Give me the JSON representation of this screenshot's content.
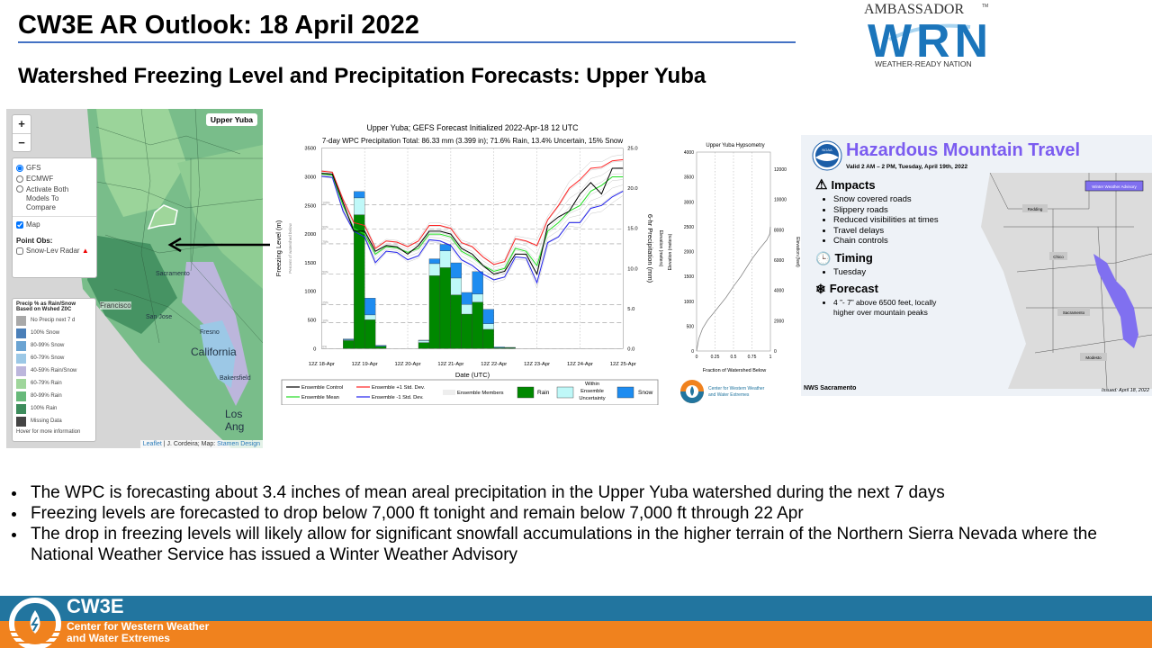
{
  "slide": {
    "title": "CW3E AR Outlook: 18 April 2022",
    "subtitle": "Watershed Freezing Level and Precipitation Forecasts: Upper Yuba",
    "bullets": [
      "The WPC is forecasting about 3.4 inches of mean areal precipitation in the Upper Yuba watershed during  the next 7 days",
      "Freezing levels are forecasted to drop below 7,000 ft tonight and remain below 7,000 ft through  22 Apr",
      "The drop in freezing levels will likely allow for significant snowfall accumulations in the higher terrain of the Northern Sierra Nevada where the National Weather Service has issued a Winter Weather Advisory"
    ]
  },
  "wrn_logo": {
    "top": "AMBASSADOR",
    "tm": "TM",
    "mark": "WRN",
    "bottom": "WEATHER-READY NATION"
  },
  "map": {
    "zoom_in": "+",
    "zoom_out": "−",
    "badge": "Upper Yuba",
    "models": [
      {
        "label": "GFS",
        "checked": true
      },
      {
        "label": "ECMWF",
        "checked": false
      },
      {
        "label": "Activate Both Models To Compare",
        "checked": false
      }
    ],
    "map_checkbox": "Map",
    "point_obs_label": "Point Obs:",
    "snow_radar": "Snow-Lev Radar",
    "legend_title": "Precip % as Rain/Snow Based on Wshed Z0C",
    "legend": [
      {
        "label": "No Precip next 7 d",
        "color": "#a9a9a9"
      },
      {
        "label": "100% Snow",
        "color": "#4a7fb8"
      },
      {
        "label": "80-99% Snow",
        "color": "#6aa3d2"
      },
      {
        "label": "60-79% Snow",
        "color": "#9cc8e6"
      },
      {
        "label": "40-59% Rain/Snow",
        "color": "#bcb6dc"
      },
      {
        "label": "60-79% Rain",
        "color": "#9fd69b"
      },
      {
        "label": "80-99% Rain",
        "color": "#67b97a"
      },
      {
        "label": "100% Rain",
        "color": "#3d8c5c"
      },
      {
        "label": "Missing Data",
        "color": "#444444"
      }
    ],
    "legend_footer": "Hover for more information",
    "places": [
      "Francisco",
      "San Jose",
      "California",
      "Sacramento",
      "Fresno",
      "Los Ang",
      "Bakersfield"
    ],
    "attribution_leaflet": "Leaflet",
    "attribution_rest": " | J. Cordeira; Map: ",
    "attribution_stamen": "Stamen Design"
  },
  "chart_data": [
    {
      "type": "bar+line",
      "title": "Upper Yuba; GEFS Forecast Initialized 2022-Apr-18 12 UTC",
      "subtitle": "7-day WPC Precipitation Total: 86.33 mm (3.399 in);  71.6% Rain, 13.4% Uncertain, 15% Snow",
      "xlabel": "Date (UTC)",
      "ylabel": "Freezing Level (m)",
      "ylabel_inner": "Percent of watershed below",
      "y2label": "6-hr Precipitation (mm)",
      "y3label": "Elevation (meters)",
      "xticks": [
        "12Z 18-Apr",
        "12Z 19-Apr",
        "12Z 20-Apr",
        "12Z 21-Apr",
        "12Z 22-Apr",
        "12Z 23-Apr",
        "12Z 24-Apr",
        "12Z 25-Apr"
      ],
      "ylim": [
        0,
        3500
      ],
      "yticks": [
        0,
        500,
        1000,
        1500,
        2000,
        2500,
        3000,
        3500
      ],
      "y2lim": [
        0,
        25
      ],
      "y2ticks": [
        "0.0",
        "5.0",
        "10.0",
        "15.0",
        "20.0",
        "25.0"
      ],
      "percent_lines": [
        {
          "label": "0%",
          "value": 0
        },
        {
          "label": "10%",
          "value": 450
        },
        {
          "label": "25%",
          "value": 770
        },
        {
          "label": "50%",
          "value": 1300
        },
        {
          "label": "75%",
          "value": 1830
        },
        {
          "label": "90%",
          "value": 2090
        },
        {
          "label": "100%",
          "value": 2510
        }
      ],
      "bins_6hr": 28,
      "rain": [
        0,
        0,
        1.0,
        16.7,
        3.6,
        0.3,
        0,
        0,
        0,
        0.75,
        9.1,
        10.1,
        6.7,
        4.3,
        5.8,
        2.4,
        0.1,
        0.1,
        0,
        0,
        0,
        0,
        0,
        0,
        0,
        0,
        0,
        0
      ],
      "uncertain": [
        0,
        0,
        0.1,
        2.1,
        0.6,
        0,
        0,
        0,
        0,
        0.25,
        1.5,
        2.1,
        2.1,
        1.2,
        1.0,
        0.7,
        0,
        0,
        0,
        0,
        0,
        0,
        0,
        0,
        0,
        0,
        0,
        0
      ],
      "snow": [
        0,
        0,
        0.1,
        0.8,
        2.1,
        0.1,
        0,
        0,
        0,
        0.05,
        0.6,
        0.8,
        1.9,
        1.5,
        2.8,
        1.8,
        0.1,
        0.05,
        0,
        0,
        0,
        0,
        0,
        0,
        0,
        0,
        0,
        0
      ],
      "series": [
        {
          "name": "Ensemble Control",
          "color": "#000000",
          "values": [
            3060,
            3050,
            2550,
            2050,
            2050,
            1700,
            1800,
            1780,
            1650,
            1800,
            2050,
            2050,
            2000,
            1750,
            1650,
            1450,
            1300,
            1350,
            1650,
            1650,
            1300,
            2150,
            2300,
            2400,
            2700,
            2900,
            2700,
            3150,
            3150
          ]
        },
        {
          "name": "Ensemble Mean",
          "color": "#22dd22",
          "values": [
            3050,
            3030,
            2500,
            2100,
            2000,
            1650,
            1780,
            1760,
            1680,
            1750,
            2000,
            2000,
            1950,
            1700,
            1600,
            1450,
            1350,
            1400,
            1750,
            1700,
            1450,
            2050,
            2200,
            2400,
            2500,
            2750,
            2850,
            3000,
            3000
          ]
        },
        {
          "name": "Ensemble +1 Std. Dev.",
          "color": "#ff2222",
          "values": [
            3100,
            3080,
            2600,
            2200,
            2150,
            1750,
            1880,
            1860,
            1780,
            1880,
            2150,
            2150,
            2100,
            1850,
            1780,
            1600,
            1470,
            1520,
            1920,
            1880,
            1800,
            2250,
            2500,
            2800,
            2950,
            3150,
            3170,
            3280,
            3300
          ]
        },
        {
          "name": "Ensemble -1 Std. Dev.",
          "color": "#2222ee",
          "values": [
            3010,
            2990,
            2400,
            2050,
            1950,
            1500,
            1700,
            1680,
            1550,
            1620,
            1900,
            1880,
            1800,
            1550,
            1450,
            1300,
            1200,
            1250,
            1600,
            1580,
            1150,
            1850,
            1950,
            2200,
            2200,
            2450,
            2500,
            2650,
            2750
          ]
        }
      ],
      "legend": {
        "control": "Ensemble Control",
        "mean": "Ensemble Mean",
        "plus": "Ensemble +1 Std. Dev.",
        "minus": "Ensemble -1 Std. Dev.",
        "members": "Ensemble Members",
        "rain": "Rain",
        "uncertain": "Within Ensemble Uncertainty",
        "snow": "Snow"
      },
      "colors": {
        "rain": "#008800",
        "uncertain": "#bff8f8",
        "snow": "#1e8cf0",
        "members": "#c8c8c8"
      }
    },
    {
      "type": "line",
      "title": "Upper Yuba Hypsometry",
      "xlabel": "Fraction of Watershed Below",
      "ylabel": "Elevation (meters)",
      "y2label": "Elevation (feet)",
      "xlim": [
        0,
        1
      ],
      "xticks": [
        "0",
        "0.25",
        "0.5",
        "0.75",
        "1"
      ],
      "ylim": [
        0,
        4000
      ],
      "yticks": [
        0,
        500,
        1000,
        1500,
        2000,
        2500,
        3000,
        3500,
        4000
      ],
      "y2ticks": [
        0,
        2000,
        4000,
        6000,
        8000,
        10000,
        12000
      ],
      "x": [
        0,
        0.03,
        0.08,
        0.15,
        0.25,
        0.4,
        0.5,
        0.6,
        0.75,
        0.85,
        0.95,
        0.99,
        1
      ],
      "y": [
        0,
        250,
        450,
        620,
        800,
        1080,
        1300,
        1500,
        1850,
        2050,
        2230,
        2350,
        2500
      ]
    }
  ],
  "mini_logo": {
    "text1": "Center for Western Weather",
    "text2": "and Water Extremes"
  },
  "hazard": {
    "title": "Hazardous Mountain Travel",
    "valid": "Valid 2 AM – 2 PM, Tuesday, April 19th, 2022",
    "noaa": "NOAA",
    "impacts_h": "Impacts",
    "impacts": [
      "Snow covered roads",
      "Slippery roads",
      "Reduced visibilities at times",
      "Travel delays",
      "Chain controls"
    ],
    "timing_h": "Timing",
    "timing": [
      "Tuesday"
    ],
    "forecast_h": "Forecast",
    "forecast": [
      "4 ”- 7” above 6500 feet, locally higher over mountain peaks"
    ],
    "advisory": "Winter Weather Advisory",
    "cities": [
      "Redding",
      "Chico",
      "Sacramento",
      "Modesto"
    ],
    "office": "NWS Sacramento",
    "issued": "Issued: April 18, 2022",
    "advisory_color": "#8070f0"
  },
  "footer": {
    "brand": "CW3E",
    "line1": "Center for Western Weather",
    "line2": "and Water Extremes",
    "blue": "#22759f",
    "orange": "#f0821e"
  }
}
